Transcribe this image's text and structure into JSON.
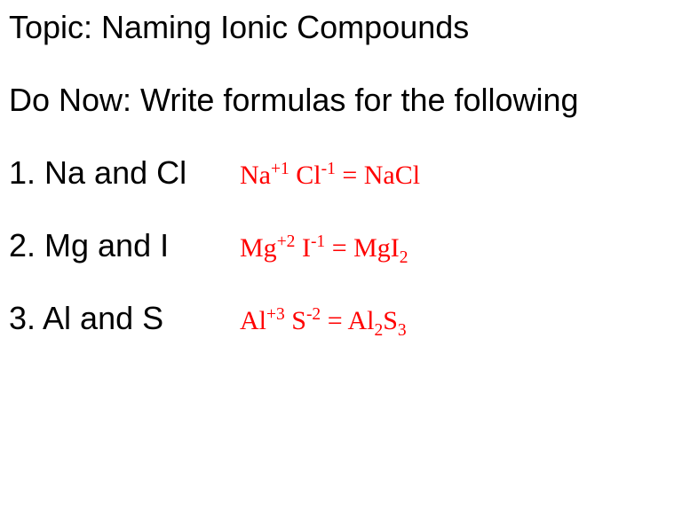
{
  "colors": {
    "background": "#ffffff",
    "body_text": "#000000",
    "answer_text": "#ff0000"
  },
  "typography": {
    "body_font": "Arial",
    "body_size_pt": 27,
    "answer_font": "Times New Roman",
    "answer_size_pt": 22
  },
  "title": "Topic: Naming Ionic Compounds",
  "donow": "Do Now: Write formulas for the following",
  "items": [
    {
      "prompt": "1. Na   and Cl",
      "answer": {
        "cation": "Na",
        "cation_charge": "+1",
        "anion": "Cl",
        "anion_charge": "-1",
        "equals": "  = ",
        "formula_parts": [
          {
            "base": "NaCl",
            "sub": ""
          }
        ]
      }
    },
    {
      "prompt": "2. Mg and I",
      "answer": {
        "cation": "Mg",
        "cation_charge": "+2",
        "anion": "I",
        "anion_charge": "-1",
        "equals": "  = ",
        "formula_parts": [
          {
            "base": "MgI",
            "sub": "2"
          }
        ]
      }
    },
    {
      "prompt": "3. Al and S",
      "answer": {
        "cation": "Al",
        "cation_charge": "+3",
        "anion": "S",
        "anion_charge": "-2",
        "equals": "  = ",
        "formula_parts": [
          {
            "base": "Al",
            "sub": "2"
          },
          {
            "base": "S",
            "sub": "3"
          }
        ]
      }
    }
  ]
}
